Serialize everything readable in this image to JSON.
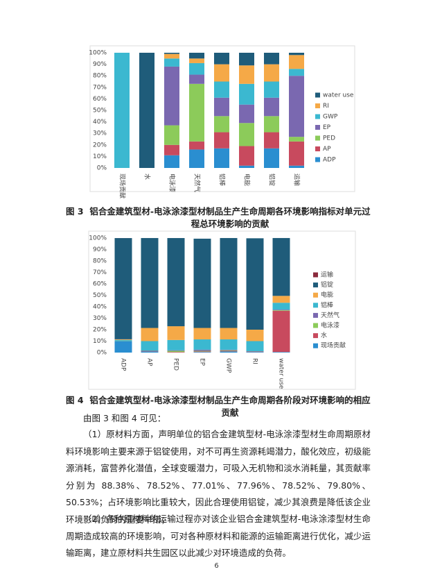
{
  "chart_data": [
    {
      "type": "bar",
      "stacked": true,
      "grid": false,
      "legend": "right",
      "categories": [
        "现场贡献",
        "水",
        "电泳漆",
        "天然气",
        "铝棒",
        "电能",
        "铝锭",
        "运输"
      ],
      "series": [
        {
          "name": "ADP",
          "color": "#2a8ed0",
          "values": [
            0,
            0,
            11,
            16,
            17,
            2,
            17,
            2
          ]
        },
        {
          "name": "AP",
          "color": "#c84a5e",
          "values": [
            0,
            0,
            9,
            7,
            14,
            17,
            14,
            21
          ]
        },
        {
          "name": "PED",
          "color": "#8ccb5a",
          "values": [
            0,
            0,
            17,
            50,
            14,
            20,
            14,
            4
          ]
        },
        {
          "name": "EP",
          "color": "#7a68b0",
          "values": [
            0,
            0,
            51,
            8,
            16,
            16,
            16,
            53
          ]
        },
        {
          "name": "GWP",
          "color": "#3bb8d0",
          "values": [
            100,
            0,
            7,
            10,
            14,
            18,
            14,
            6
          ]
        },
        {
          "name": "RI",
          "color": "#f5a947",
          "values": [
            0,
            0,
            4,
            4,
            15,
            16,
            15,
            12
          ]
        },
        {
          "name": "water use",
          "color": "#1f5c7a",
          "values": [
            0,
            100,
            1,
            5,
            10,
            11,
            10,
            2
          ]
        }
      ],
      "ylim": [
        0,
        100
      ],
      "yticks": [
        {
          "value": 0,
          "label": "0%"
        },
        {
          "value": 10,
          "label": "10%"
        },
        {
          "value": 20,
          "label": "20%"
        },
        {
          "value": 30,
          "label": "30%"
        },
        {
          "value": 40,
          "label": "40%"
        },
        {
          "value": 50,
          "label": "50%"
        },
        {
          "value": 60,
          "label": "60%"
        },
        {
          "value": 70,
          "label": "70%"
        },
        {
          "value": 80,
          "label": "80%"
        },
        {
          "value": 90,
          "label": "90%"
        },
        {
          "value": 100,
          "label": "100%"
        }
      ]
    },
    {
      "type": "bar",
      "stacked": true,
      "grid": false,
      "legend": "right",
      "categories": [
        "ADP",
        "AP",
        "PED",
        "EP",
        "GWP",
        "RI",
        "water use"
      ],
      "series": [
        {
          "name": "现场贡献",
          "color": "#2a8ed0",
          "values": [
            10,
            1,
            0,
            0.5,
            1,
            0.5,
            0.5
          ]
        },
        {
          "name": "水",
          "color": "#c84a5e",
          "values": [
            0,
            0.5,
            0.5,
            0.5,
            0.5,
            0.5,
            36
          ]
        },
        {
          "name": "电泳漆",
          "color": "#8ccb5a",
          "values": [
            0.2,
            0,
            1,
            0.5,
            0.5,
            0,
            0.5
          ]
        },
        {
          "name": "天然气",
          "color": "#7a68b0",
          "values": [
            0,
            0,
            0.5,
            1,
            0.5,
            0,
            0.5
          ]
        },
        {
          "name": "铝棒",
          "color": "#3bb8d0",
          "values": [
            0.8,
            8.5,
            9,
            9,
            9,
            9,
            6
          ]
        },
        {
          "name": "电能",
          "color": "#f5a947",
          "values": [
            0.6,
            11.5,
            12,
            10,
            10,
            10,
            6
          ]
        },
        {
          "name": "铝锭",
          "color": "#1f5c7a",
          "values": [
            88.38,
            78.52,
            77.01,
            77.96,
            78.52,
            79.8,
            50.53
          ]
        },
        {
          "name": "运输",
          "color": "#8b2a3c",
          "values": [
            0.02,
            0,
            0,
            0,
            0,
            0,
            0
          ]
        }
      ],
      "ylim": [
        0,
        100
      ],
      "yticks": [
        {
          "value": 0,
          "label": "0%"
        },
        {
          "value": 10,
          "label": "10%"
        },
        {
          "value": 20,
          "label": "20%"
        },
        {
          "value": 30,
          "label": "30%"
        },
        {
          "value": 40,
          "label": "40%"
        },
        {
          "value": 50,
          "label": "50%"
        },
        {
          "value": 60,
          "label": "60%"
        },
        {
          "value": 70,
          "label": "70%"
        },
        {
          "value": 80,
          "label": "80%"
        },
        {
          "value": 90,
          "label": "90%"
        },
        {
          "value": 100,
          "label": "100%"
        }
      ]
    }
  ],
  "figure_captions": [
    {
      "label": "图 3",
      "text": "铝合金建筑型材-电泳涂漆型材制品生产生命周期各环境影响指标对单元过程总环境影响的贡献"
    },
    {
      "label": "图 4",
      "text": "铝合金建筑型材-电泳涂漆型材制品生产生命周期各阶段对环境影响的相应贡献"
    }
  ],
  "paragraphs": [
    "由图 3 和图 4 可见：",
    "（1）原材料方面，声明单位的铝合金建筑型材-电泳涂漆型材生命周期原材料环境影响主要来源于铝锭使用，对不可再生资源耗竭潜力，酸化效应，初级能源消耗，富营养化潜值，全球变暖潜力，可吸入无机物和淡水消耗量，其贡献率分别为 88.38%、78.52%、77.01%、77.96%、78.52%、79.80%、50.53%；占环境影响比重较大，因此合理使用铝锭，减少其浪费是降低该企业环境影响负荷的重要举措；",
    "（2）各种原材料的运输过程亦对该企业铝合金建筑型材-电泳涂漆型材生命周期造成较高的环境影响，可对各种原材料和能源的运输距离进行优化，减少运输距离，建立原材料共生园区以此减少对环境造成的负荷。"
  ],
  "page_number": "6"
}
